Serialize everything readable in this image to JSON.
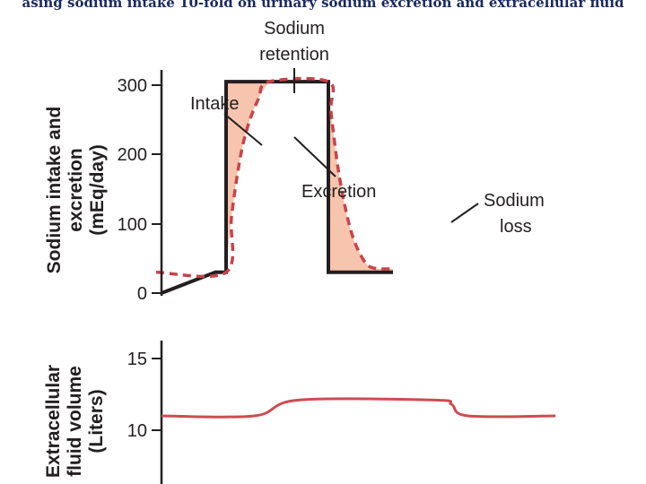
{
  "title": "asing sodium intake 10-fold on urinary sodium excretion and extracellular fluid",
  "chart_data": [
    {
      "type": "line",
      "ylabel_lines": [
        "Sodium intake and",
        "excretion",
        "(mEq/day)"
      ],
      "yticks": [
        "0",
        "100",
        "200",
        "300"
      ],
      "ylim": [
        0,
        300
      ],
      "series": [
        {
          "name": "Intake",
          "style": "solid",
          "color": "#231f20",
          "points": [
            [
              0.0,
              0
            ],
            [
              1.0,
              30
            ],
            [
              1.2,
              30
            ],
            [
              1.2,
              305
            ],
            [
              3.1,
              305
            ],
            [
              3.1,
              30
            ],
            [
              4.3,
              30
            ]
          ]
        },
        {
          "name": "Excretion",
          "style": "dashed",
          "color": "#c8434a",
          "points": [
            [
              -0.1,
              30
            ],
            [
              1.2,
              30
            ],
            [
              1.3,
              110
            ],
            [
              1.45,
              190
            ],
            [
              1.6,
              240
            ],
            [
              1.8,
              280
            ],
            [
              2.0,
              305
            ],
            [
              3.1,
              305
            ],
            [
              3.15,
              260
            ],
            [
              3.3,
              170
            ],
            [
              3.5,
              95
            ],
            [
              3.7,
              55
            ],
            [
              3.9,
              37
            ],
            [
              4.3,
              35
            ]
          ]
        }
      ],
      "annotations": [
        "Sodium",
        "retention",
        "Intake",
        "Excretion",
        "Sodium",
        "loss"
      ],
      "shade_color": "#f7c4ae"
    },
    {
      "type": "line",
      "ylabel_lines": [
        "Extracellular",
        "fluid volume",
        "(Liters)"
      ],
      "yticks": [
        "10",
        "15"
      ],
      "ylim": [
        5,
        16
      ],
      "series": [
        {
          "name": "",
          "color": "#cc4d50",
          "points": [
            [
              0.0,
              11.0
            ],
            [
              0.85,
              11.0
            ],
            [
              1.25,
              12.1
            ],
            [
              2.5,
              12.1
            ],
            [
              2.65,
              11.8
            ],
            [
              2.8,
              11.0
            ],
            [
              3.6,
              11.0
            ]
          ]
        }
      ]
    }
  ]
}
